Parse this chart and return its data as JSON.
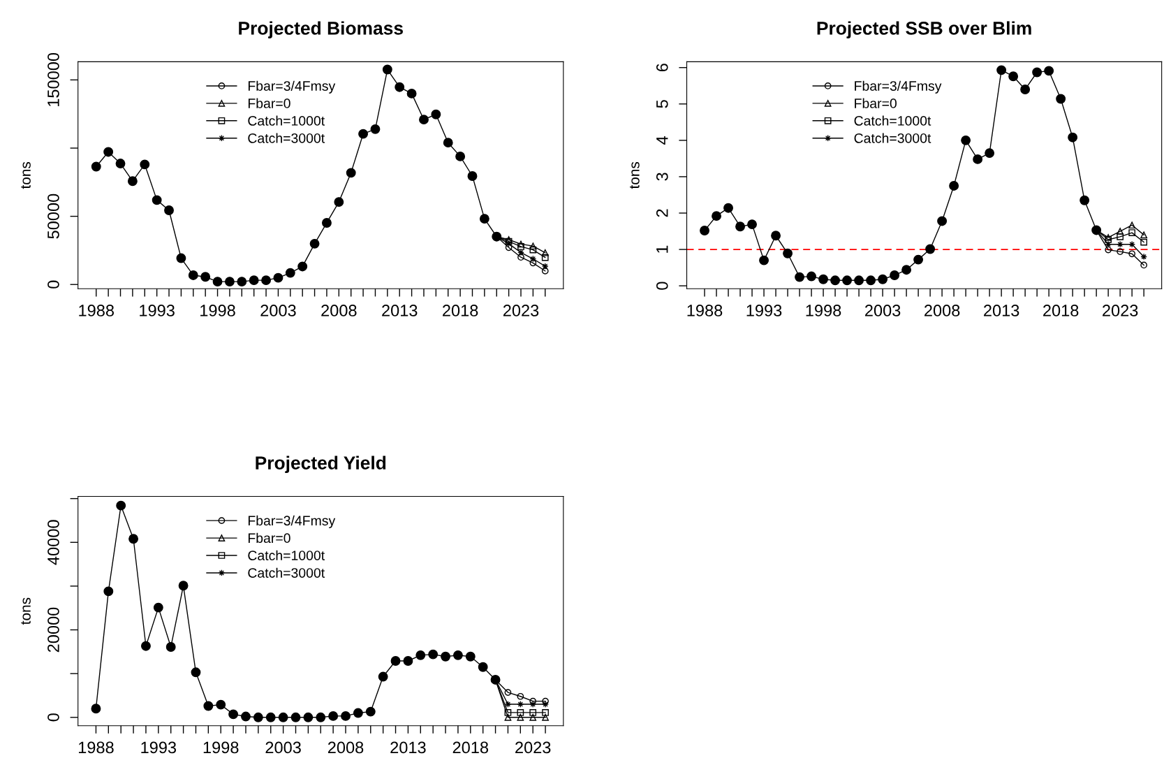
{
  "chart_data": [
    {
      "type": "line",
      "title": "Projected Biomass",
      "ylabel": "tons",
      "legend": "top",
      "xlim": [
        1986.5,
        2026.5
      ],
      "ylim": [
        -3100,
        163300
      ],
      "yticks": [
        0,
        50000,
        {
          "value": 100000,
          "label": null
        },
        150000
      ],
      "xticks": [
        1988,
        {
          "value": 1989,
          "label": null
        },
        {
          "value": 1990,
          "label": null
        },
        {
          "value": 1991,
          "label": null
        },
        {
          "value": 1992,
          "label": null
        },
        1993,
        {
          "value": 1994,
          "label": null
        },
        {
          "value": 1995,
          "label": null
        },
        {
          "value": 1996,
          "label": null
        },
        {
          "value": 1997,
          "label": null
        },
        1998,
        {
          "value": 1999,
          "label": null
        },
        {
          "value": 2000,
          "label": null
        },
        {
          "value": 2001,
          "label": null
        },
        {
          "value": 2002,
          "label": null
        },
        2003,
        {
          "value": 2004,
          "label": null
        },
        {
          "value": 2005,
          "label": null
        },
        {
          "value": 2006,
          "label": null
        },
        {
          "value": 2007,
          "label": null
        },
        2008,
        {
          "value": 2009,
          "label": null
        },
        {
          "value": 2010,
          "label": null
        },
        {
          "value": 2011,
          "label": null
        },
        {
          "value": 2012,
          "label": null
        },
        2013,
        {
          "value": 2014,
          "label": null
        },
        {
          "value": 2015,
          "label": null
        },
        {
          "value": 2016,
          "label": null
        },
        {
          "value": 2017,
          "label": null
        },
        2018,
        {
          "value": 2019,
          "label": null
        },
        {
          "value": 2020,
          "label": null
        },
        {
          "value": 2021,
          "label": null
        },
        {
          "value": 2022,
          "label": null
        },
        2023,
        {
          "value": 2024,
          "label": null
        },
        {
          "value": 2025,
          "label": null
        }
      ],
      "series": [
        {
          "color": "#000000",
          "marker": "circle",
          "x": [
            1988,
            1989,
            1990,
            1991,
            1992,
            1993,
            1994,
            1995,
            1996,
            1997,
            1998,
            1999,
            2000,
            2001,
            2002,
            2003,
            2004,
            2005,
            2006,
            2007,
            2008,
            2009,
            2010,
            2011,
            2012,
            2013,
            2014,
            2015,
            2016,
            2017,
            2018,
            2019,
            2020,
            2021
          ],
          "values": [
            86400,
            97200,
            88700,
            75800,
            88000,
            61900,
            54400,
            19300,
            6800,
            5600,
            2100,
            2100,
            2100,
            3100,
            3100,
            4900,
            8500,
            13200,
            29900,
            45200,
            60500,
            81900,
            110400,
            113900,
            157600,
            144700,
            140000,
            120900,
            124700,
            104000,
            93900,
            79500,
            48200,
            35100
          ]
        },
        {
          "name": "Fbar=3/4Fmsy",
          "color": "#000000",
          "marker": "circle",
          "x": [
            2021,
            2022,
            2023,
            2024,
            2025
          ],
          "values": [
            35100,
            27100,
            20000,
            15800,
            9900
          ]
        },
        {
          "name": "Fbar=0",
          "color": "#000000",
          "marker": "triangle",
          "x": [
            2021,
            2022,
            2023,
            2024,
            2025
          ],
          "values": [
            35100,
            32900,
            29600,
            28200,
            23300
          ]
        },
        {
          "name": "Catch=1000t",
          "color": "#000000",
          "marker": "square",
          "x": [
            2021,
            2022,
            2023,
            2024,
            2025
          ],
          "values": [
            35100,
            31500,
            27800,
            25400,
            19800
          ]
        },
        {
          "name": "Catch=3000t",
          "color": "#000000",
          "marker": "star",
          "x": [
            2021,
            2022,
            2023,
            2024,
            2025
          ],
          "values": [
            35100,
            29900,
            23500,
            18800,
            13400
          ]
        }
      ]
    },
    {
      "type": "line",
      "title": "Projected SSB over Blim",
      "ylabel": "tons",
      "legend": "top",
      "xlim": [
        1986.5,
        2026.5
      ],
      "ylim": [
        -0.08,
        6.16
      ],
      "yticks": [
        0,
        1,
        2,
        3,
        4,
        5,
        6
      ],
      "xticks": [
        1988,
        {
          "value": 1989,
          "label": null
        },
        {
          "value": 1990,
          "label": null
        },
        {
          "value": 1991,
          "label": null
        },
        {
          "value": 1992,
          "label": null
        },
        1993,
        {
          "value": 1994,
          "label": null
        },
        {
          "value": 1995,
          "label": null
        },
        {
          "value": 1996,
          "label": null
        },
        {
          "value": 1997,
          "label": null
        },
        1998,
        {
          "value": 1999,
          "label": null
        },
        {
          "value": 2000,
          "label": null
        },
        {
          "value": 2001,
          "label": null
        },
        {
          "value": 2002,
          "label": null
        },
        2003,
        {
          "value": 2004,
          "label": null
        },
        {
          "value": 2005,
          "label": null
        },
        {
          "value": 2006,
          "label": null
        },
        {
          "value": 2007,
          "label": null
        },
        2008,
        {
          "value": 2009,
          "label": null
        },
        {
          "value": 2010,
          "label": null
        },
        {
          "value": 2011,
          "label": null
        },
        {
          "value": 2012,
          "label": null
        },
        2013,
        {
          "value": 2014,
          "label": null
        },
        {
          "value": 2015,
          "label": null
        },
        {
          "value": 2016,
          "label": null
        },
        {
          "value": 2017,
          "label": null
        },
        2018,
        {
          "value": 2019,
          "label": null
        },
        {
          "value": 2020,
          "label": null
        },
        {
          "value": 2021,
          "label": null
        },
        {
          "value": 2022,
          "label": null
        },
        2023,
        {
          "value": 2024,
          "label": null
        },
        {
          "value": 2025,
          "label": null
        }
      ],
      "ref_lines": [
        {
          "axis": "y",
          "value": 1,
          "color": "#ff0000",
          "line_style": "dashed"
        }
      ],
      "series": [
        {
          "color": "#000000",
          "marker": "circle",
          "x": [
            1988,
            1989,
            1990,
            1991,
            1992,
            1993,
            1994,
            1995,
            1996,
            1997,
            1998,
            1999,
            2000,
            2001,
            2002,
            2003,
            2004,
            2005,
            2006,
            2007,
            2008,
            2009,
            2010,
            2011,
            2012,
            2013,
            2014,
            2015,
            2016,
            2017,
            2018,
            2019,
            2020,
            2021
          ],
          "values": [
            1.52,
            1.92,
            2.14,
            1.63,
            1.69,
            0.7,
            1.38,
            0.89,
            0.24,
            0.26,
            0.18,
            0.15,
            0.15,
            0.15,
            0.15,
            0.18,
            0.29,
            0.44,
            0.72,
            1.01,
            1.78,
            2.75,
            4.0,
            3.48,
            3.65,
            5.93,
            5.76,
            5.4,
            5.87,
            5.91,
            5.14,
            4.08,
            2.35,
            1.53
          ]
        },
        {
          "name": "Fbar=3/4Fmsy",
          "color": "#000000",
          "marker": "circle",
          "x": [
            2021,
            2022,
            2023,
            2024,
            2025
          ],
          "values": [
            1.53,
            0.99,
            0.94,
            0.88,
            0.57
          ]
        },
        {
          "name": "Fbar=0",
          "color": "#000000",
          "marker": "triangle",
          "x": [
            2021,
            2022,
            2023,
            2024,
            2025
          ],
          "values": [
            1.53,
            1.33,
            1.5,
            1.67,
            1.4
          ]
        },
        {
          "name": "Catch=1000t",
          "color": "#000000",
          "marker": "square",
          "x": [
            2021,
            2022,
            2023,
            2024,
            2025
          ],
          "values": [
            1.53,
            1.27,
            1.35,
            1.46,
            1.2
          ]
        },
        {
          "name": "Catch=3000t",
          "color": "#000000",
          "marker": "star",
          "x": [
            2021,
            2022,
            2023,
            2024,
            2025
          ],
          "values": [
            1.53,
            1.14,
            1.14,
            1.14,
            0.8
          ]
        }
      ]
    },
    {
      "type": "line",
      "title": "Projected Yield",
      "ylabel": "tons",
      "legend": "top",
      "xlim": [
        1986.56,
        2025.44
      ],
      "ylim": [
        -1900,
        50500
      ],
      "yticks": [
        0,
        {
          "value": 10000,
          "label": null
        },
        20000,
        {
          "value": 30000,
          "label": null
        },
        40000,
        {
          "value": 50000,
          "label": null
        }
      ],
      "xticks": [
        1988,
        {
          "value": 1989,
          "label": null
        },
        {
          "value": 1990,
          "label": null
        },
        {
          "value": 1991,
          "label": null
        },
        {
          "value": 1992,
          "label": null
        },
        1993,
        {
          "value": 1994,
          "label": null
        },
        {
          "value": 1995,
          "label": null
        },
        {
          "value": 1996,
          "label": null
        },
        {
          "value": 1997,
          "label": null
        },
        1998,
        {
          "value": 1999,
          "label": null
        },
        {
          "value": 2000,
          "label": null
        },
        {
          "value": 2001,
          "label": null
        },
        {
          "value": 2002,
          "label": null
        },
        2003,
        {
          "value": 2004,
          "label": null
        },
        {
          "value": 2005,
          "label": null
        },
        {
          "value": 2006,
          "label": null
        },
        {
          "value": 2007,
          "label": null
        },
        2008,
        {
          "value": 2009,
          "label": null
        },
        {
          "value": 2010,
          "label": null
        },
        {
          "value": 2011,
          "label": null
        },
        {
          "value": 2012,
          "label": null
        },
        2013,
        {
          "value": 2014,
          "label": null
        },
        {
          "value": 2015,
          "label": null
        },
        {
          "value": 2016,
          "label": null
        },
        {
          "value": 2017,
          "label": null
        },
        2018,
        {
          "value": 2019,
          "label": null
        },
        {
          "value": 2020,
          "label": null
        },
        {
          "value": 2021,
          "label": null
        },
        {
          "value": 2022,
          "label": null
        },
        2023,
        {
          "value": 2024,
          "label": null
        }
      ],
      "series": [
        {
          "color": "#000000",
          "marker": "circle",
          "x": [
            1988,
            1989,
            1990,
            1991,
            1992,
            1993,
            1994,
            1995,
            1996,
            1997,
            1998,
            1999,
            2000,
            2001,
            2002,
            2003,
            2004,
            2005,
            2006,
            2007,
            2008,
            2009,
            2010,
            2011,
            2012,
            2013,
            2014,
            2015,
            2016,
            2017,
            2018,
            2019,
            2020
          ],
          "values": [
            2000,
            28800,
            48400,
            40800,
            16300,
            25100,
            16100,
            30100,
            10300,
            2600,
            2900,
            700,
            200,
            0,
            0,
            0,
            0,
            0,
            0,
            300,
            300,
            1000,
            1300,
            9300,
            12900,
            12900,
            14200,
            14400,
            13900,
            14200,
            13900,
            11500,
            8600
          ]
        },
        {
          "name": "Fbar=3/4Fmsy",
          "color": "#000000",
          "marker": "circle",
          "x": [
            2020,
            2021,
            2022,
            2023,
            2024
          ],
          "values": [
            8600,
            5700,
            4800,
            3700,
            3700
          ]
        },
        {
          "name": "Fbar=0",
          "color": "#000000",
          "marker": "triangle",
          "x": [
            2020,
            2021,
            2022,
            2023,
            2024
          ],
          "values": [
            8600,
            0,
            0,
            0,
            0
          ]
        },
        {
          "name": "Catch=1000t",
          "color": "#000000",
          "marker": "square",
          "x": [
            2020,
            2021,
            2022,
            2023,
            2024
          ],
          "values": [
            8600,
            1100,
            1100,
            1100,
            1100
          ]
        },
        {
          "name": "Catch=3000t",
          "color": "#000000",
          "marker": "star",
          "x": [
            2020,
            2021,
            2022,
            2023,
            2024
          ],
          "values": [
            8600,
            3000,
            3000,
            3000,
            3000
          ]
        }
      ]
    }
  ]
}
